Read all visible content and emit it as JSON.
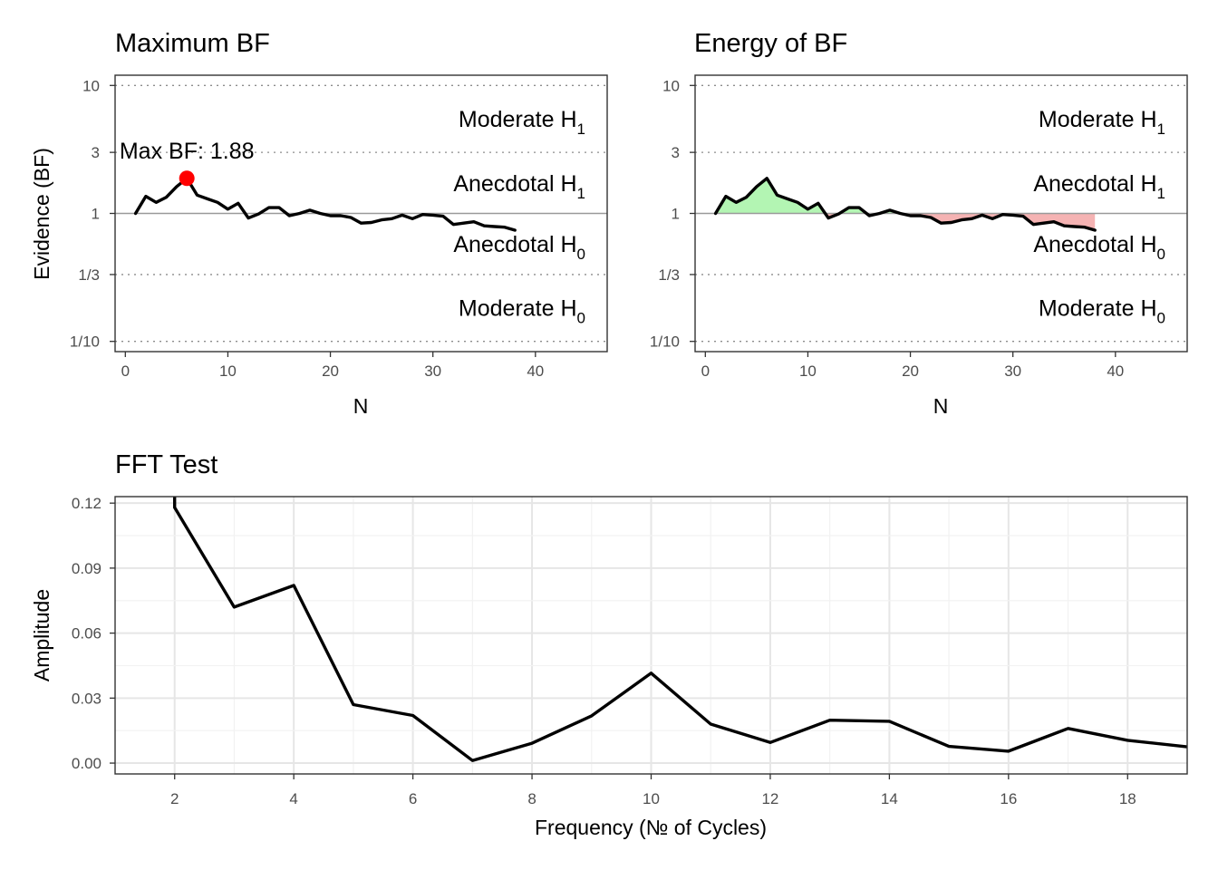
{
  "chart_data": [
    {
      "type": "line",
      "title": "Maximum BF",
      "xlabel": "N",
      "ylabel": "Evidence (BF)",
      "xlim": [
        -1,
        47
      ],
      "ylim_log10": [
        -1.08,
        1.08
      ],
      "y_scale": "log10",
      "grid": false,
      "x_ticks": [
        0,
        10,
        20,
        30,
        40
      ],
      "y_ticks": [
        {
          "value": 10,
          "label": "10"
        },
        {
          "value": 3,
          "label": "3"
        },
        {
          "value": 1,
          "label": "1"
        },
        {
          "value": 0.333,
          "label": "1/3"
        },
        {
          "value": 0.1,
          "label": "1/10"
        }
      ],
      "zones": [
        {
          "label": "Moderate H",
          "sub": "1",
          "y": 5.5
        },
        {
          "label": "Anecdotal H",
          "sub": "1",
          "y": 1.73
        },
        {
          "label": "Anecdotal H",
          "sub": "0",
          "y": 0.58
        },
        {
          "label": "Moderate H",
          "sub": "0",
          "y": 0.183
        }
      ],
      "series": [
        {
          "x": [
            1,
            2,
            3,
            4,
            5,
            6,
            7,
            8,
            9,
            10,
            11,
            12,
            13,
            14,
            15,
            16,
            17,
            18,
            19,
            20,
            21,
            22,
            23,
            24,
            25,
            26,
            27,
            28,
            29,
            30,
            31,
            32,
            33,
            34,
            35,
            36,
            37,
            38
          ],
          "y": [
            1.0,
            1.36,
            1.22,
            1.34,
            1.62,
            1.88,
            1.39,
            1.3,
            1.22,
            1.08,
            1.2,
            0.92,
            0.99,
            1.11,
            1.11,
            0.96,
            1.0,
            1.06,
            1.0,
            0.96,
            0.96,
            0.93,
            0.84,
            0.85,
            0.89,
            0.91,
            0.97,
            0.91,
            0.98,
            0.97,
            0.95,
            0.82,
            0.84,
            0.86,
            0.8,
            0.79,
            0.78,
            0.74
          ]
        }
      ],
      "annotation": {
        "text": "Max BF: 1.88",
        "x": 6,
        "y": 1.88
      }
    },
    {
      "type": "area",
      "title": "Energy of BF",
      "xlabel": "N",
      "ylabel": "",
      "xlim": [
        -1,
        47
      ],
      "ylim_log10": [
        -1.08,
        1.08
      ],
      "y_scale": "log10",
      "grid": false,
      "x_ticks": [
        0,
        10,
        20,
        30,
        40
      ],
      "y_ticks": [
        {
          "value": 10,
          "label": "10"
        },
        {
          "value": 3,
          "label": "3"
        },
        {
          "value": 1,
          "label": "1"
        },
        {
          "value": 0.333,
          "label": "1/3"
        },
        {
          "value": 0.1,
          "label": "1/10"
        }
      ],
      "zones": [
        {
          "label": "Moderate H",
          "sub": "1",
          "y": 5.5
        },
        {
          "label": "Anecdotal H",
          "sub": "1",
          "y": 1.73
        },
        {
          "label": "Anecdotal H",
          "sub": "0",
          "y": 0.58
        },
        {
          "label": "Moderate H",
          "sub": "0",
          "y": 0.183
        }
      ],
      "series": [
        {
          "x": [
            1,
            2,
            3,
            4,
            5,
            6,
            7,
            8,
            9,
            10,
            11,
            12,
            13,
            14,
            15,
            16,
            17,
            18,
            19,
            20,
            21,
            22,
            23,
            24,
            25,
            26,
            27,
            28,
            29,
            30,
            31,
            32,
            33,
            34,
            35,
            36,
            37,
            38
          ],
          "y": [
            1.0,
            1.36,
            1.22,
            1.34,
            1.62,
            1.88,
            1.39,
            1.3,
            1.22,
            1.08,
            1.2,
            0.92,
            0.99,
            1.11,
            1.11,
            0.96,
            1.0,
            1.06,
            1.0,
            0.96,
            0.96,
            0.93,
            0.84,
            0.85,
            0.89,
            0.91,
            0.97,
            0.91,
            0.98,
            0.97,
            0.95,
            0.82,
            0.84,
            0.86,
            0.8,
            0.79,
            0.78,
            0.74
          ]
        }
      ],
      "fill_above": "#b3f5b3",
      "fill_below": "#f5b3b3"
    },
    {
      "type": "line",
      "title": "FFT Test",
      "xlabel": "Frequency (№ of Cycles)",
      "ylabel": "Amplitude",
      "xlim": [
        1,
        19
      ],
      "ylim": [
        -0.005,
        0.123
      ],
      "grid": true,
      "x_ticks": [
        2,
        4,
        6,
        8,
        10,
        12,
        14,
        16,
        18
      ],
      "y_ticks": [
        {
          "value": 0.0,
          "label": "0.00"
        },
        {
          "value": 0.03,
          "label": "0.03"
        },
        {
          "value": 0.06,
          "label": "0.06"
        },
        {
          "value": 0.09,
          "label": "0.09"
        },
        {
          "value": 0.12,
          "label": "0.12"
        }
      ],
      "series": [
        {
          "x": [
            2,
            2,
            3,
            4,
            5,
            6,
            7,
            8,
            9,
            10,
            11,
            12,
            13,
            14,
            15,
            16,
            17,
            18,
            19
          ],
          "y": [
            0.126,
            0.118,
            0.072,
            0.082,
            0.027,
            0.022,
            0.0012,
            0.0092,
            0.0218,
            0.0415,
            0.018,
            0.0095,
            0.0198,
            0.0193,
            0.0077,
            0.0055,
            0.016,
            0.0105,
            0.0075
          ]
        }
      ]
    }
  ]
}
